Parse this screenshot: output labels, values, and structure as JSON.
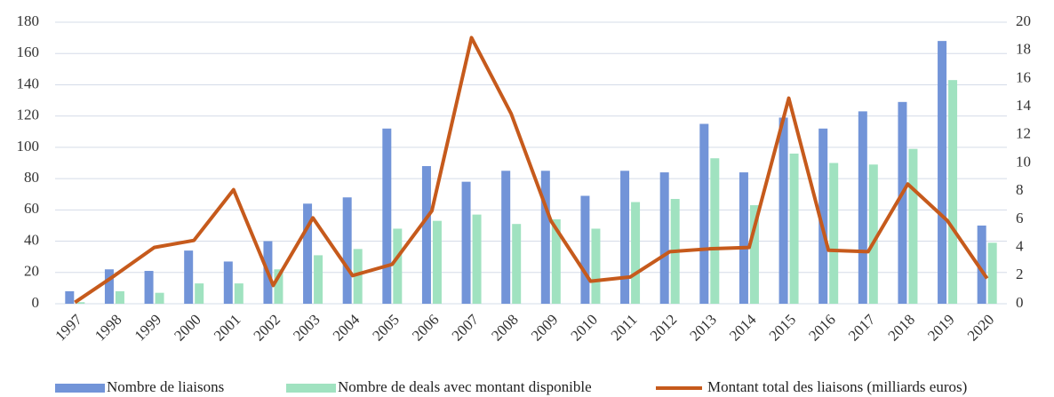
{
  "chart_data": {
    "type": "bar_line",
    "categories": [
      "1997",
      "1998",
      "1999",
      "2000",
      "2001",
      "2002",
      "2003",
      "2004",
      "2005",
      "2006",
      "2007",
      "2008",
      "2009",
      "2010",
      "2011",
      "2012",
      "2013",
      "2014",
      "2015",
      "2016",
      "2017",
      "2018",
      "2019",
      "2020"
    ],
    "series": [
      {
        "name": "Nombre de liaisons",
        "type": "bar",
        "color": "#7294d8",
        "values": [
          8,
          22,
          21,
          34,
          27,
          40,
          64,
          68,
          112,
          88,
          78,
          85,
          85,
          69,
          85,
          84,
          115,
          84,
          119,
          112,
          123,
          129,
          168,
          50
        ]
      },
      {
        "name": "Nombre de deals avec montant disponible",
        "type": "bar",
        "color": "#a0e2c0",
        "values": [
          1,
          8,
          7,
          13,
          13,
          22,
          31,
          35,
          48,
          53,
          57,
          51,
          54,
          48,
          65,
          67,
          93,
          63,
          96,
          90,
          89,
          99,
          143,
          39
        ]
      },
      {
        "name": "Montant total des liaisons (milliards euros)",
        "type": "line",
        "axis": "y2",
        "color": "#c65a1c",
        "values": [
          0.1,
          2.0,
          4.0,
          4.5,
          8.1,
          1.3,
          6.1,
          2.0,
          2.8,
          6.6,
          18.9,
          13.5,
          5.9,
          1.6,
          1.9,
          3.7,
          3.9,
          4.0,
          14.6,
          3.8,
          3.7,
          8.5,
          5.9,
          1.8
        ]
      }
    ],
    "ylim": [
      0,
      180
    ],
    "yticks": [
      0,
      20,
      40,
      60,
      80,
      100,
      120,
      140,
      160,
      180
    ],
    "y2lim": [
      0,
      20
    ],
    "y2ticks": [
      0,
      2,
      4,
      6,
      8,
      10,
      12,
      14,
      16,
      18,
      20
    ],
    "grid": true,
    "legend": "bottom"
  }
}
